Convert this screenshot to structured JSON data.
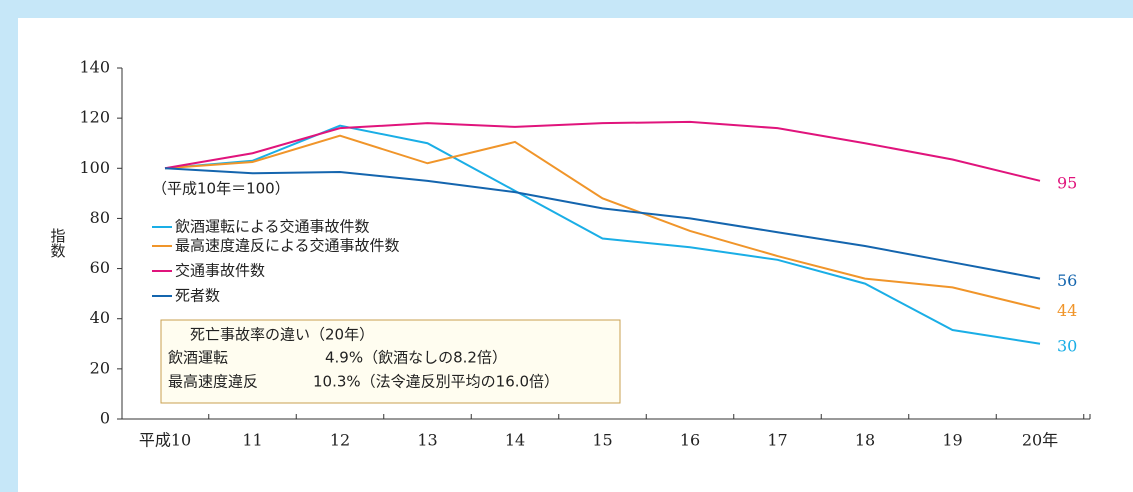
{
  "chart_data": {
    "type": "line",
    "ylabel": "指数",
    "note": "（平成10年＝100）",
    "categories": [
      "平成10",
      "11",
      "12",
      "13",
      "14",
      "15",
      "16",
      "17",
      "18",
      "19",
      "20年"
    ],
    "series": [
      {
        "name": "飲酒運転による交通事故件数",
        "color": "#1aaee6",
        "values": [
          100,
          103,
          117,
          110,
          91,
          72,
          68.5,
          63.5,
          54,
          35.5,
          30
        ]
      },
      {
        "name": "最高速度違反による交通事故件数",
        "color": "#f0952a",
        "values": [
          100,
          102.5,
          113,
          102,
          110.5,
          88,
          75,
          65,
          56,
          52.5,
          44
        ]
      },
      {
        "name": "交通事故件数",
        "color": "#e0147c",
        "values": [
          100,
          106,
          116,
          118,
          116.5,
          118,
          118.5,
          116,
          110,
          103.5,
          95
        ]
      },
      {
        "name": "死者数",
        "color": "#1465ae",
        "values": [
          100,
          98,
          98.5,
          95,
          90.5,
          84,
          80,
          74.5,
          69,
          62.5,
          56
        ]
      }
    ],
    "ylim": [
      0,
      140
    ],
    "yticks": [
      0,
      20,
      40,
      60,
      80,
      100,
      120,
      140
    ],
    "grid": false,
    "annotation": {
      "title": "死亡事故率の違い（20年）",
      "rows": [
        [
          "飲酒運転",
          "4.9%（飲酒なしの8.2倍）"
        ],
        [
          "最高速度違反",
          "10.3%（法令違反別平均の16.0倍）"
        ]
      ]
    }
  }
}
